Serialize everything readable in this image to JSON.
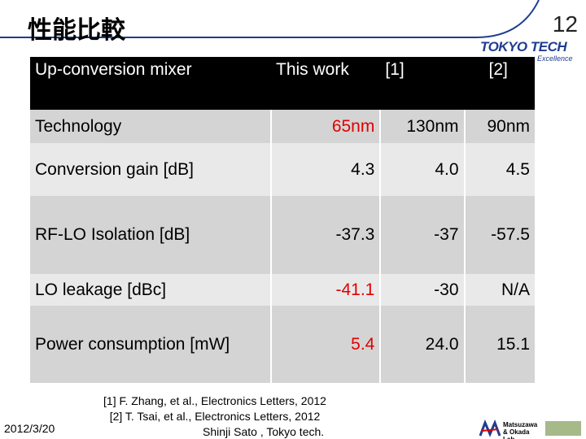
{
  "header": {
    "title": "性能比較",
    "page_number": "12",
    "logo": "TOKYO TECH",
    "logo_tagline": "Excellence"
  },
  "table": {
    "columns": [
      "Up-conversion mixer",
      "This work",
      "[1]",
      "[2]"
    ],
    "rows": [
      [
        "Technology",
        "65nm",
        "130nm",
        "90nm"
      ],
      [
        "Conversion gain [dB]",
        "4.3",
        "4.0",
        "4.5"
      ],
      [
        "RF-LO Isolation [dB]",
        "-37.3",
        "-37",
        "-57.5"
      ],
      [
        "LO leakage [dBc]",
        "-41.1",
        "-30",
        "N/A"
      ],
      [
        "Power consumption [mW]",
        "5.4",
        "24.0",
        "15.1"
      ]
    ]
  },
  "references": [
    "[1] F. Zhang, et al., Electronics Letters, 2012",
    "[2] T. Tsai, et al., Electronics Letters, 2012"
  ],
  "footer": {
    "date": "2012/3/20",
    "author": "Shinji Sato , Tokyo tech.",
    "lab": "Matsuzawa & Okada Lab."
  }
}
